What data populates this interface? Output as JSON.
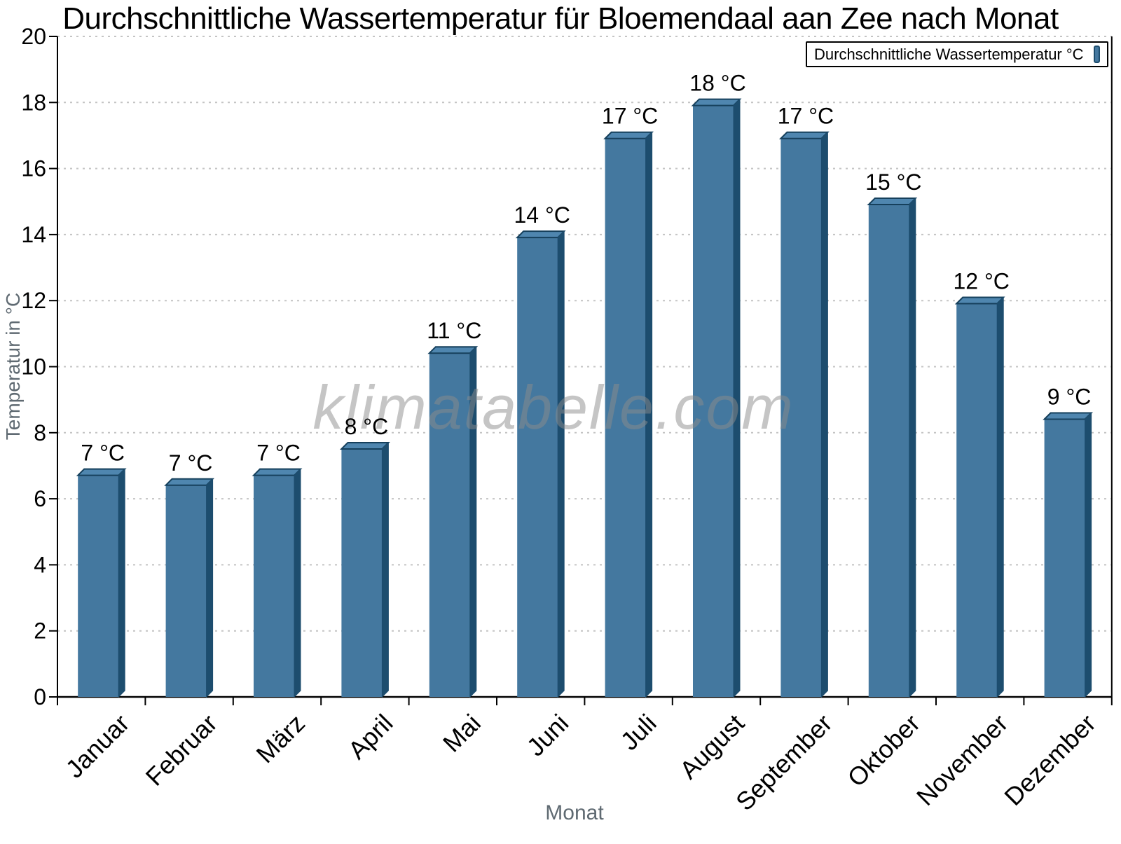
{
  "chart_data": {
    "type": "bar",
    "title": "Durchschnittliche Wassertemperatur für Bloemendaal aan Zee nach Monat",
    "xlabel": "Monat",
    "ylabel": "Temperatur in °C",
    "ylim": [
      0,
      20
    ],
    "yticks": [
      0,
      2,
      4,
      6,
      8,
      10,
      12,
      14,
      16,
      18,
      20
    ],
    "grid": "horizontal-dotted",
    "legend": {
      "label": "Durchschnittliche Wassertemperatur °C",
      "position": "top-right"
    },
    "watermark": "klimatabelle.com",
    "categories": [
      "Januar",
      "Februar",
      "März",
      "April",
      "Mai",
      "Juni",
      "Juli",
      "August",
      "September",
      "Oktober",
      "November",
      "Dezember"
    ],
    "values": [
      6.9,
      6.6,
      6.9,
      7.7,
      10.6,
      14.1,
      17.1,
      18.1,
      17.1,
      15.1,
      12.1,
      8.6
    ],
    "bar_labels": [
      "7 °C",
      "7 °C",
      "7 °C",
      "8 °C",
      "11 °C",
      "14 °C",
      "17 °C",
      "18 °C",
      "17 °C",
      "15 °C",
      "12 °C",
      "9 °C"
    ],
    "colors": {
      "bar_face": "#44789F",
      "bar_top": "#4F86AF",
      "bar_side": "#1D4D6E",
      "bar_edge": "#16405C",
      "grid": "#C4C4C4",
      "axis": "#000000",
      "tick_label": "#000000",
      "axis_title": "#5F6A72",
      "watermark": "#8C8C8C"
    }
  }
}
